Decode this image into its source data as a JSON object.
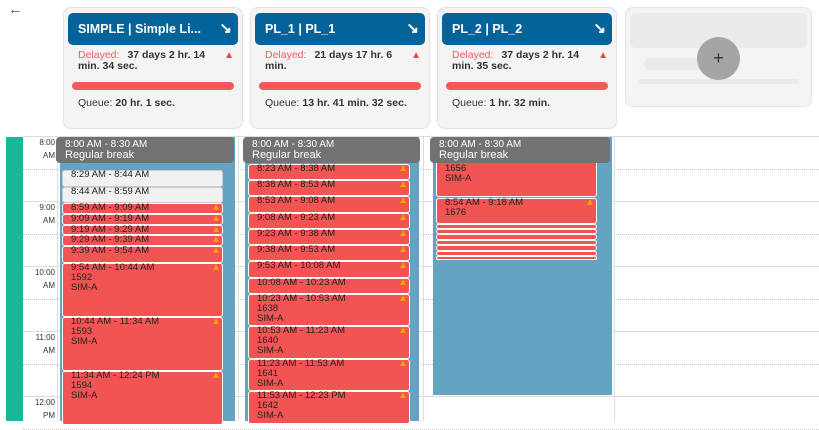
{
  "back_icon": "arrow-left",
  "cards": [
    {
      "title": "SIMPLE | Simple Li...",
      "delayed_label": "Delayed:",
      "delayed_value": "37 days 2 hr. 14 min. 34 sec.",
      "queue_label": "Queue:",
      "queue_value": "20 hr. 1 sec.",
      "progress": 100
    },
    {
      "title": "PL_1 | PL_1",
      "delayed_label": "Delayed:",
      "delayed_value": "21 days 17 hr. 6 min.",
      "queue_label": "Queue:",
      "queue_value": "13 hr. 41 min. 32 sec.",
      "progress": 100
    },
    {
      "title": "PL_2 | PL_2",
      "delayed_label": "Delayed:",
      "delayed_value": "37 days 2 hr. 14 min. 35 sec.",
      "queue_label": "Queue:",
      "queue_value": "1 hr. 32 min.",
      "progress": 100
    }
  ],
  "add_button": "+",
  "arrow_glyph": "↘",
  "warn_glyph": "▲",
  "hours": [
    [
      "8:00",
      "AM"
    ],
    [
      "9:00",
      "AM"
    ],
    [
      "10:00",
      "AM"
    ],
    [
      "11:00",
      "AM"
    ],
    [
      "12:00",
      "PM"
    ]
  ],
  "break": {
    "time": "8:00 AM - 8:30 AM",
    "label": "Regular break"
  },
  "columns": [
    {
      "events": [
        {
          "s": 509,
          "e": 524,
          "t": "8:29 AM - 8:44 AM",
          "k": "white"
        },
        {
          "s": 524,
          "e": 539,
          "t": "8:44 AM - 8:59 AM",
          "k": "white"
        },
        {
          "s": 539,
          "e": 549,
          "t": "8:59 AM - 9:09 AM",
          "k": "red"
        },
        {
          "s": 549,
          "e": 559,
          "t": "9:09 AM - 9:19 AM",
          "k": "red"
        },
        {
          "s": 559,
          "e": 569,
          "t": "9:19 AM - 9:29 AM",
          "k": "red"
        },
        {
          "s": 569,
          "e": 579,
          "t": "9:29 AM - 9:39 AM",
          "k": "red"
        },
        {
          "s": 579,
          "e": 594,
          "t": "9:39 AM - 9:54 AM",
          "k": "red"
        },
        {
          "s": 594,
          "e": 644,
          "t": "9:54 AM - 10:44 AM",
          "id": "1592",
          "r": "SIM-A",
          "k": "red"
        },
        {
          "s": 644,
          "e": 694,
          "t": "10:44 AM - 11:34 AM",
          "id": "1593",
          "r": "SIM-A",
          "k": "red"
        },
        {
          "s": 694,
          "e": 744,
          "t": "11:34 AM - 12:24 PM",
          "id": "1594",
          "r": "SIM-A",
          "k": "red"
        }
      ]
    },
    {
      "events": [
        {
          "s": 503,
          "e": 518,
          "t": "8:23 AM - 8:38 AM",
          "k": "red"
        },
        {
          "s": 518,
          "e": 533,
          "t": "8:38 AM - 8:53 AM",
          "k": "red"
        },
        {
          "s": 533,
          "e": 548,
          "t": "8:53 AM - 9:08 AM",
          "k": "red"
        },
        {
          "s": 548,
          "e": 563,
          "t": "9:08 AM - 9:23 AM",
          "k": "red"
        },
        {
          "s": 563,
          "e": 578,
          "t": "9:23 AM - 9:38 AM",
          "k": "red"
        },
        {
          "s": 578,
          "e": 593,
          "t": "9:38 AM - 9:53 AM",
          "k": "red"
        },
        {
          "s": 593,
          "e": 608,
          "t": "9:53 AM - 10:08 AM",
          "k": "red"
        },
        {
          "s": 608,
          "e": 623,
          "t": "10:08 AM - 10:23 AM",
          "k": "red"
        },
        {
          "s": 623,
          "e": 653,
          "t": "10:23 AM - 10:53 AM",
          "id": "1638",
          "r": "SIM-A",
          "k": "red"
        },
        {
          "s": 653,
          "e": 683,
          "t": "10:53 AM - 11:23 AM",
          "id": "1640",
          "r": "SIM-A",
          "k": "red"
        },
        {
          "s": 683,
          "e": 713,
          "t": "11:23 AM - 11:53 AM",
          "id": "1641",
          "r": "SIM-A",
          "k": "red"
        },
        {
          "s": 713,
          "e": 743,
          "t": "11:53 AM - 12:23 PM",
          "id": "1642",
          "r": "SIM-A",
          "k": "red"
        }
      ]
    },
    {
      "events": [
        {
          "s": 484,
          "e": 534,
          "id": "1656",
          "r": "SIM-A",
          "k": "red",
          "nowarn": true
        },
        {
          "s": 534,
          "e": 558,
          "t": "8:54 AM - 9:18 AM",
          "id": "1676",
          "k": "red"
        },
        {
          "s": 558,
          "e": 563,
          "k": "red",
          "nowarn": true
        },
        {
          "s": 563,
          "e": 568,
          "k": "red",
          "nowarn": true
        },
        {
          "s": 568,
          "e": 573,
          "k": "red",
          "nowarn": true
        },
        {
          "s": 573,
          "e": 578,
          "k": "red",
          "nowarn": true
        },
        {
          "s": 578,
          "e": 583,
          "k": "red",
          "nowarn": true
        },
        {
          "s": 583,
          "e": 588,
          "k": "red",
          "nowarn": true
        },
        {
          "s": 588,
          "e": 592,
          "k": "red",
          "nowarn": true
        }
      ]
    }
  ]
}
